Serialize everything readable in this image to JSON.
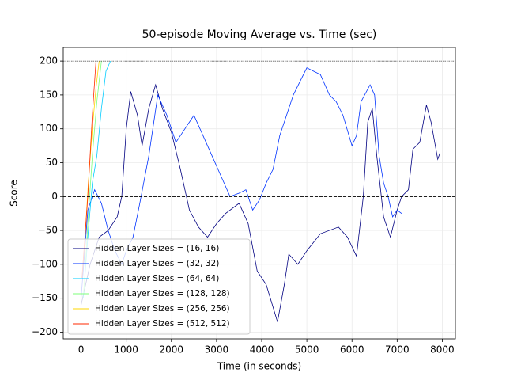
{
  "chart_data": {
    "type": "line",
    "title": "50-episode Moving Average vs. Time (sec)",
    "x_label": "Time (in seconds)",
    "y_label": "Score",
    "xlim": [
      -395,
      8290
    ],
    "ylim": [
      -210,
      220
    ],
    "xticks": [
      0,
      1000,
      2000,
      3000,
      4000,
      5000,
      6000,
      7000,
      8000
    ],
    "yticks": [
      {
        "value": -200,
        "label": "−200"
      },
      {
        "value": -150,
        "label": "−150"
      },
      {
        "value": -100,
        "label": "−100"
      },
      {
        "value": -50,
        "label": "−50"
      },
      0,
      50,
      100,
      150,
      200
    ],
    "grid": true,
    "legend": "lower left",
    "reference_lines": [
      {
        "value": 200,
        "style": "dotted",
        "color": "#000000"
      },
      {
        "value": 0,
        "style": "dashed",
        "color": "#000000"
      }
    ],
    "series": [
      {
        "name": "Hidden Layer Sizes = (16, 16)",
        "color": "#000080",
        "x": [
          0,
          200,
          400,
          600,
          800,
          900,
          1000,
          1100,
          1250,
          1350,
          1500,
          1650,
          1800,
          2000,
          2200,
          2400,
          2600,
          2800,
          3000,
          3200,
          3500,
          3700,
          3900,
          4100,
          4350,
          4500,
          4600,
          4800,
          5000,
          5300,
          5700,
          5900,
          6100,
          6250,
          6350,
          6450,
          6550,
          6700,
          6850,
          7000,
          7100,
          7250,
          7350,
          7500,
          7650,
          7750,
          7900,
          7950
        ],
        "values": [
          -160,
          -100,
          -60,
          -50,
          -30,
          0,
          100,
          155,
          120,
          75,
          130,
          165,
          130,
          95,
          40,
          -20,
          -45,
          -60,
          -40,
          -25,
          -10,
          -40,
          -110,
          -130,
          -185,
          -130,
          -85,
          -100,
          -80,
          -55,
          -45,
          -60,
          -88,
          0,
          110,
          130,
          60,
          -30,
          -60,
          -20,
          0,
          10,
          70,
          80,
          135,
          110,
          55,
          65
        ]
      },
      {
        "name": "Hidden Layer Sizes = (32, 32)",
        "color": "#0033ff",
        "x": [
          0,
          150,
          300,
          450,
          600,
          750,
          900,
          1000,
          1150,
          1300,
          1500,
          1700,
          1900,
          2100,
          2300,
          2500,
          2700,
          2900,
          3100,
          3300,
          3500,
          3650,
          3800,
          3950,
          4100,
          4250,
          4400,
          4550,
          4700,
          4850,
          5000,
          5150,
          5300,
          5500,
          5650,
          5800,
          6000,
          6100,
          6200,
          6400,
          6500,
          6600,
          6700,
          6800,
          6900,
          7000,
          7100
        ],
        "values": [
          -150,
          -20,
          10,
          -10,
          -50,
          -80,
          -100,
          -80,
          -60,
          -10,
          60,
          150,
          120,
          80,
          100,
          120,
          90,
          60,
          30,
          0,
          5,
          10,
          -20,
          -5,
          20,
          40,
          90,
          120,
          150,
          170,
          190,
          185,
          180,
          150,
          140,
          120,
          75,
          90,
          140,
          165,
          150,
          60,
          20,
          0,
          -30,
          -20,
          -25
        ]
      },
      {
        "name": "Hidden Layer Sizes = (64, 64)",
        "color": "#00ccff",
        "x": [
          50,
          150,
          250,
          350,
          450,
          550,
          650
        ],
        "values": [
          -150,
          -60,
          20,
          60,
          130,
          185,
          200
        ]
      },
      {
        "name": "Hidden Layer Sizes = (128, 128)",
        "color": "#7dff7a",
        "x": [
          60,
          150,
          250,
          350,
          450
        ],
        "values": [
          -140,
          -40,
          60,
          140,
          200
        ]
      },
      {
        "name": "Hidden Layer Sizes = (256, 256)",
        "color": "#ffd700",
        "x": [
          80,
          160,
          250,
          330,
          400
        ],
        "values": [
          -70,
          20,
          100,
          160,
          200
        ]
      },
      {
        "name": "Hidden Layer Sizes = (512, 512)",
        "color": "#ff2a00",
        "x": [
          20,
          150,
          250,
          330
        ],
        "values": [
          -120,
          0,
          120,
          200
        ]
      }
    ]
  }
}
